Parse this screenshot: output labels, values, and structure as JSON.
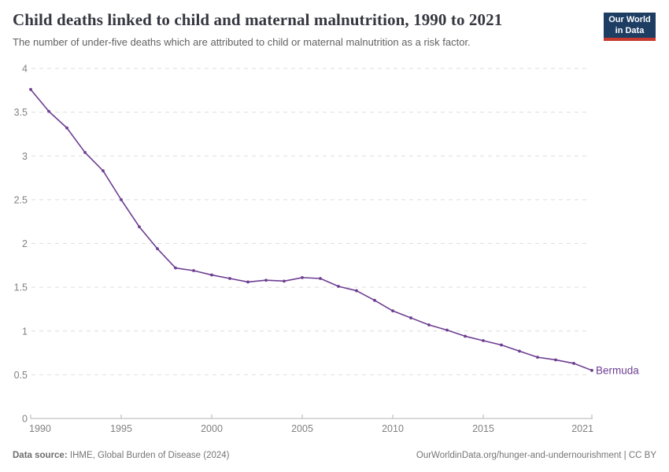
{
  "header": {
    "title": "Child deaths linked to child and maternal malnutrition, 1990 to 2021",
    "subtitle": "The number of under-five deaths which are attributed to child or maternal malnutrition as a risk factor.",
    "logo": {
      "line1": "Our World",
      "line2": "in Data",
      "bg_color": "#1d3d63",
      "bar_color": "#c5392f"
    }
  },
  "chart_data": {
    "type": "line",
    "title": "Child deaths linked to child and maternal malnutrition, 1990 to 2021",
    "x": [
      1990,
      1991,
      1992,
      1993,
      1994,
      1995,
      1996,
      1997,
      1998,
      1999,
      2000,
      2001,
      2002,
      2003,
      2004,
      2005,
      2006,
      2007,
      2008,
      2009,
      2010,
      2011,
      2012,
      2013,
      2014,
      2015,
      2016,
      2017,
      2018,
      2019,
      2020,
      2021
    ],
    "series": [
      {
        "name": "Bermuda",
        "color": "#6d3e91",
        "values": [
          3.76,
          3.51,
          3.32,
          3.04,
          2.83,
          2.5,
          2.19,
          1.94,
          1.72,
          1.69,
          1.64,
          1.6,
          1.56,
          1.58,
          1.57,
          1.61,
          1.6,
          1.51,
          1.46,
          1.35,
          1.23,
          1.15,
          1.07,
          1.01,
          0.94,
          0.89,
          0.84,
          0.77,
          0.7,
          0.67,
          0.63,
          0.55
        ]
      }
    ],
    "xlabel": "",
    "ylabel": "",
    "ylim": [
      0,
      4
    ],
    "yticks": [
      0,
      0.5,
      1,
      1.5,
      2,
      2.5,
      3,
      3.5,
      4
    ],
    "xticks": [
      1990,
      1995,
      2000,
      2005,
      2010,
      2015,
      2021
    ],
    "grid": "horizontal-dashed",
    "legend_position": "label-at-line-end",
    "markers": true
  },
  "footer": {
    "source_label": "Data source:",
    "source_value": "IHME, Global Burden of Disease (2024)",
    "credit": "OurWorldinData.org/hunger-and-undernourishment | CC BY"
  }
}
